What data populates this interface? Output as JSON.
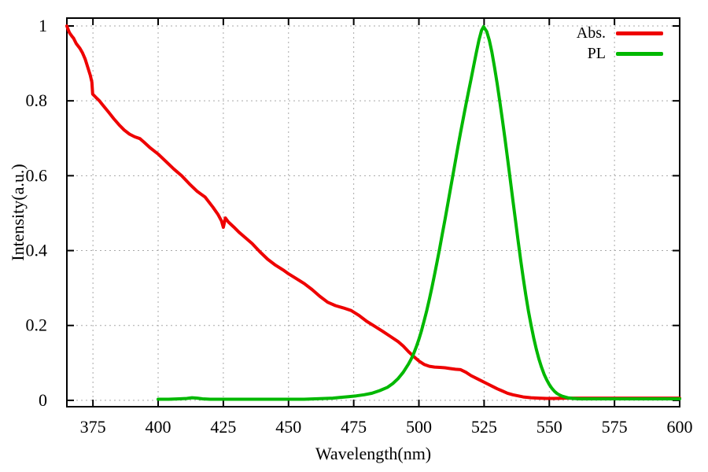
{
  "chart_data": {
    "type": "line",
    "title": "",
    "xlabel": "Wavelength(nm)",
    "ylabel": "Intensity(a.u.)",
    "xlim": [
      365,
      600
    ],
    "ylim": [
      -0.017,
      1.021
    ],
    "x_ticks": [
      375,
      400,
      425,
      450,
      475,
      500,
      525,
      550,
      575,
      600
    ],
    "x_tick_labels": [
      "375",
      "400",
      "425",
      "450",
      "475",
      "500",
      "525",
      "550",
      "575",
      "600"
    ],
    "y_ticks": [
      0,
      0.2,
      0.4,
      0.6,
      0.8,
      1
    ],
    "y_tick_labels": [
      "0",
      "0.2",
      "0.4",
      "0.6",
      "0.8",
      "1"
    ],
    "grid": true,
    "grid_color": "#a8a8a8",
    "axis_color": "#000000",
    "background": "#ffffff",
    "legend_position": "top-right-inside",
    "series": [
      {
        "name": "Abs.",
        "color": "#ee0000",
        "points": [
          [
            365,
            1.0
          ],
          [
            365.5,
            0.99
          ],
          [
            366,
            0.982
          ],
          [
            367,
            0.972
          ],
          [
            367.6,
            0.967
          ],
          [
            368.6,
            0.953
          ],
          [
            370,
            0.94
          ],
          [
            371,
            0.928
          ],
          [
            372,
            0.912
          ],
          [
            373,
            0.89
          ],
          [
            374,
            0.868
          ],
          [
            374.6,
            0.85
          ],
          [
            374.9,
            0.818
          ],
          [
            376,
            0.81
          ],
          [
            377.5,
            0.8
          ],
          [
            378.6,
            0.79
          ],
          [
            381,
            0.77
          ],
          [
            383,
            0.752
          ],
          [
            385,
            0.736
          ],
          [
            387,
            0.722
          ],
          [
            389,
            0.711
          ],
          [
            391,
            0.704
          ],
          [
            393,
            0.699
          ],
          [
            394.5,
            0.69
          ],
          [
            397,
            0.674
          ],
          [
            400,
            0.658
          ],
          [
            403,
            0.638
          ],
          [
            406,
            0.618
          ],
          [
            409,
            0.6
          ],
          [
            412,
            0.578
          ],
          [
            415,
            0.558
          ],
          [
            418,
            0.543
          ],
          [
            421,
            0.516
          ],
          [
            423,
            0.496
          ],
          [
            424.3,
            0.479
          ],
          [
            425,
            0.462
          ],
          [
            425.8,
            0.487
          ],
          [
            427,
            0.476
          ],
          [
            429,
            0.463
          ],
          [
            431,
            0.449
          ],
          [
            433,
            0.437
          ],
          [
            436,
            0.419
          ],
          [
            439,
            0.397
          ],
          [
            442,
            0.377
          ],
          [
            445,
            0.361
          ],
          [
            448,
            0.348
          ],
          [
            450,
            0.338
          ],
          [
            453,
            0.325
          ],
          [
            456,
            0.312
          ],
          [
            459,
            0.296
          ],
          [
            462,
            0.278
          ],
          [
            465,
            0.262
          ],
          [
            468,
            0.253
          ],
          [
            471,
            0.247
          ],
          [
            474,
            0.24
          ],
          [
            477,
            0.227
          ],
          [
            480,
            0.211
          ],
          [
            483,
            0.198
          ],
          [
            486,
            0.185
          ],
          [
            489,
            0.171
          ],
          [
            492,
            0.157
          ],
          [
            494,
            0.145
          ],
          [
            496,
            0.13
          ],
          [
            498,
            0.117
          ],
          [
            500,
            0.105
          ],
          [
            502,
            0.096
          ],
          [
            504,
            0.091
          ],
          [
            506,
            0.089
          ],
          [
            508,
            0.088
          ],
          [
            510,
            0.087
          ],
          [
            512,
            0.085
          ],
          [
            514,
            0.083
          ],
          [
            516,
            0.082
          ],
          [
            518,
            0.075
          ],
          [
            520,
            0.066
          ],
          [
            522,
            0.059
          ],
          [
            524,
            0.052
          ],
          [
            526,
            0.045
          ],
          [
            528,
            0.038
          ],
          [
            530,
            0.031
          ],
          [
            532,
            0.025
          ],
          [
            534,
            0.019
          ],
          [
            536,
            0.015
          ],
          [
            538,
            0.012
          ],
          [
            540,
            0.009
          ],
          [
            543,
            0.007
          ],
          [
            546,
            0.006
          ],
          [
            549,
            0.005
          ],
          [
            552,
            0.005
          ],
          [
            556,
            0.006
          ],
          [
            560,
            0.006
          ],
          [
            565,
            0.006
          ],
          [
            570,
            0.006
          ],
          [
            575,
            0.006
          ],
          [
            580,
            0.006
          ],
          [
            585,
            0.006
          ],
          [
            590,
            0.006
          ],
          [
            595,
            0.006
          ],
          [
            600,
            0.006
          ]
        ]
      },
      {
        "name": "PL",
        "color": "#00b800",
        "points": [
          [
            400,
            0.003
          ],
          [
            404,
            0.003
          ],
          [
            408,
            0.004
          ],
          [
            411,
            0.005
          ],
          [
            413,
            0.007
          ],
          [
            415,
            0.006
          ],
          [
            417,
            0.004
          ],
          [
            420,
            0.003
          ],
          [
            424,
            0.003
          ],
          [
            428,
            0.003
          ],
          [
            432,
            0.003
          ],
          [
            436,
            0.003
          ],
          [
            440,
            0.003
          ],
          [
            444,
            0.003
          ],
          [
            448,
            0.003
          ],
          [
            452,
            0.003
          ],
          [
            456,
            0.003
          ],
          [
            460,
            0.004
          ],
          [
            464,
            0.005
          ],
          [
            467,
            0.006
          ],
          [
            470,
            0.008
          ],
          [
            473,
            0.01
          ],
          [
            476,
            0.012
          ],
          [
            479,
            0.015
          ],
          [
            482,
            0.019
          ],
          [
            485,
            0.026
          ],
          [
            488,
            0.035
          ],
          [
            490,
            0.045
          ],
          [
            492,
            0.058
          ],
          [
            494,
            0.075
          ],
          [
            496,
            0.097
          ],
          [
            497,
            0.11
          ],
          [
            498,
            0.125
          ],
          [
            499,
            0.143
          ],
          [
            500,
            0.163
          ],
          [
            501,
            0.186
          ],
          [
            502,
            0.212
          ],
          [
            503,
            0.24
          ],
          [
            504,
            0.27
          ],
          [
            505,
            0.302
          ],
          [
            506,
            0.336
          ],
          [
            507,
            0.371
          ],
          [
            508,
            0.407
          ],
          [
            509,
            0.445
          ],
          [
            510,
            0.483
          ],
          [
            511,
            0.522
          ],
          [
            512,
            0.561
          ],
          [
            513,
            0.6
          ],
          [
            514,
            0.639
          ],
          [
            515,
            0.678
          ],
          [
            516,
            0.716
          ],
          [
            517,
            0.753
          ],
          [
            518,
            0.789
          ],
          [
            519,
            0.824
          ],
          [
            520,
            0.858
          ],
          [
            521,
            0.893
          ],
          [
            522,
            0.928
          ],
          [
            523,
            0.962
          ],
          [
            524,
            0.988
          ],
          [
            524.8,
            0.998
          ],
          [
            526,
            0.985
          ],
          [
            527,
            0.962
          ],
          [
            528,
            0.93
          ],
          [
            529,
            0.89
          ],
          [
            530,
            0.846
          ],
          [
            531,
            0.799
          ],
          [
            532,
            0.75
          ],
          [
            533,
            0.699
          ],
          [
            534,
            0.646
          ],
          [
            535,
            0.592
          ],
          [
            536,
            0.537
          ],
          [
            537,
            0.482
          ],
          [
            538,
            0.428
          ],
          [
            539,
            0.376
          ],
          [
            540,
            0.327
          ],
          [
            541,
            0.281
          ],
          [
            542,
            0.239
          ],
          [
            543,
            0.201
          ],
          [
            544,
            0.167
          ],
          [
            545,
            0.137
          ],
          [
            546,
            0.111
          ],
          [
            547,
            0.089
          ],
          [
            548,
            0.07
          ],
          [
            549,
            0.055
          ],
          [
            550,
            0.042
          ],
          [
            551,
            0.032
          ],
          [
            552,
            0.024
          ],
          [
            553,
            0.018
          ],
          [
            554,
            0.014
          ],
          [
            555,
            0.011
          ],
          [
            557,
            0.007
          ],
          [
            559,
            0.005
          ],
          [
            562,
            0.004
          ],
          [
            566,
            0.004
          ],
          [
            570,
            0.004
          ],
          [
            575,
            0.004
          ],
          [
            580,
            0.004
          ],
          [
            585,
            0.004
          ],
          [
            590,
            0.004
          ],
          [
            595,
            0.004
          ],
          [
            600,
            0.004
          ]
        ]
      }
    ]
  }
}
